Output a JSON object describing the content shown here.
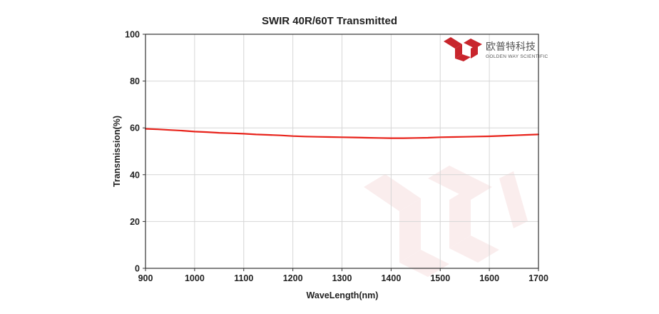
{
  "chart_data": {
    "type": "line",
    "title": "SWIR 40R/60T Transmitted",
    "xlabel": "WaveLength(nm)",
    "ylabel": "Transmission(%)",
    "xlim": [
      900,
      1700
    ],
    "ylim": [
      0,
      100
    ],
    "x_ticks": [
      900,
      1000,
      1100,
      1200,
      1300,
      1400,
      1500,
      1600,
      1700
    ],
    "y_ticks": [
      0,
      20,
      40,
      60,
      80,
      100
    ],
    "grid": true,
    "legend": "none",
    "series": [
      {
        "color": "#e8231b",
        "x": [
          900,
          925,
          950,
          975,
          1000,
          1025,
          1050,
          1075,
          1100,
          1125,
          1150,
          1175,
          1200,
          1225,
          1250,
          1275,
          1300,
          1325,
          1350,
          1375,
          1400,
          1425,
          1450,
          1475,
          1500,
          1525,
          1550,
          1575,
          1600,
          1625,
          1650,
          1675,
          1700
        ],
        "y": [
          59.6,
          59.4,
          59.1,
          58.8,
          58.4,
          58.2,
          57.9,
          57.7,
          57.5,
          57.2,
          57.0,
          56.8,
          56.5,
          56.3,
          56.2,
          56.1,
          56.0,
          55.9,
          55.8,
          55.7,
          55.6,
          55.6,
          55.7,
          55.8,
          56.0,
          56.1,
          56.2,
          56.3,
          56.4,
          56.6,
          56.8,
          57.0,
          57.2
        ]
      }
    ]
  },
  "logo": {
    "cn_text": "欧普特科技",
    "en_text": "GOLDEN WAY SCIENTIFIC",
    "color": "#c8252c"
  }
}
